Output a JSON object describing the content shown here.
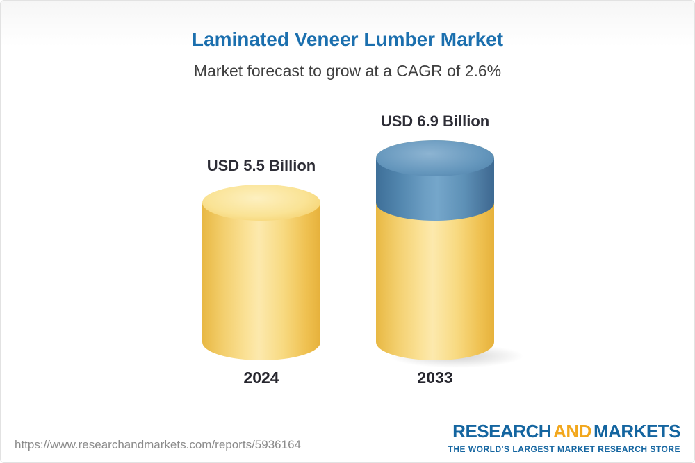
{
  "chart_data": {
    "type": "bar",
    "style": "3d-cylinder",
    "title": "Laminated Veneer Lumber Market",
    "subtitle": "Market forecast to grow at a CAGR of 2.6%",
    "unit": "USD Billion",
    "cagr_percent": 2.6,
    "categories": [
      "2024",
      "2033"
    ],
    "bars": [
      {
        "category": "2024",
        "total": 5.5,
        "label": "USD 5.5 Billion",
        "segments": [
          {
            "name": "market-size",
            "color": "#f6cf65",
            "value": 5.5
          }
        ]
      },
      {
        "category": "2033",
        "total": 6.9,
        "label": "USD 6.9 Billion",
        "segments": [
          {
            "name": "market-size",
            "color": "#f6cf65",
            "value": 5.5
          },
          {
            "name": "forecast-growth",
            "color": "#5589b0",
            "value": 1.4
          }
        ]
      }
    ],
    "ylim": [
      0,
      7
    ],
    "grid": false,
    "legend": false
  },
  "palette": {
    "title_blue": "#1b6fae",
    "subtitle_gray": "#3f3f3f",
    "label_dark": "#2d2d36",
    "bar_yellow": "#f6cf65",
    "bar_blue": "#5589b0",
    "logo_blue": "#1465a0",
    "logo_gold": "#f2a71d",
    "url_gray": "#8b8b8b"
  },
  "footer": {
    "url": "https://www.researchandmarkets.com/reports/5936164",
    "logo": {
      "word1": "RESEARCH",
      "word2": "AND",
      "word3": "MARKETS",
      "tagline": "THE WORLD'S LARGEST MARKET RESEARCH STORE"
    }
  }
}
